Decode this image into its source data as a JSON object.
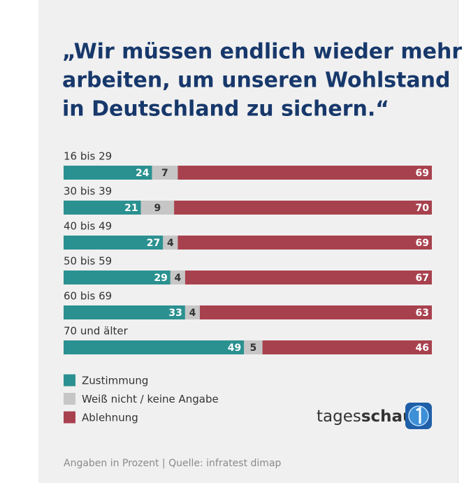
{
  "chart_data": {
    "type": "stacked-bar-horizontal",
    "title": [
      "„Wir müssen endlich wieder mehr",
      "arbeiten, um unseren Wohlstand",
      "in Deutschland zu sichern.“"
    ],
    "categories": [
      "16 bis 29",
      "30 bis 39",
      "40 bis 49",
      "50 bis 59",
      "60 bis 69",
      "70 und älter"
    ],
    "series": [
      {
        "name": "Zustimmung",
        "color": "#2b9190",
        "values": [
          24,
          21,
          27,
          29,
          33,
          49
        ]
      },
      {
        "name": "Weiß nicht / keine Angabe",
        "color": "#c6c6c6",
        "values": [
          7,
          9,
          4,
          4,
          4,
          5
        ]
      },
      {
        "name": "Ablehnung",
        "color": "#a8414e",
        "values": [
          69,
          70,
          69,
          67,
          63,
          46
        ]
      }
    ],
    "note": "Angaben in Prozent | Quelle: infratest dimap",
    "brand": [
      "tages",
      "schau"
    ]
  }
}
